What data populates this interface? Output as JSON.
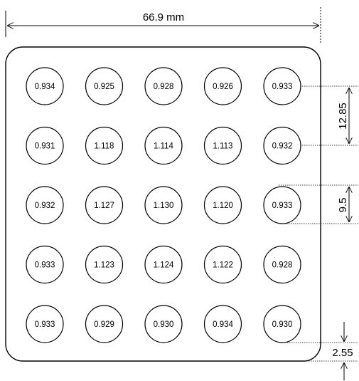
{
  "dimensions": {
    "width": "66.9 mm",
    "pitch": "12.85",
    "diameter": "9.5",
    "margin": "2.55"
  },
  "grid": {
    "rows": [
      [
        "0.934",
        "0.925",
        "0.928",
        "0.926",
        "0.933"
      ],
      [
        "0.931",
        "1.118",
        "1.114",
        "1.113",
        "0.932"
      ],
      [
        "0.932",
        "1.127",
        "1.130",
        "1.120",
        "0.933"
      ],
      [
        "0.933",
        "1.123",
        "1.124",
        "1.122",
        "0.928"
      ],
      [
        "0.933",
        "0.929",
        "0.930",
        "0.934",
        "0.930"
      ]
    ]
  }
}
